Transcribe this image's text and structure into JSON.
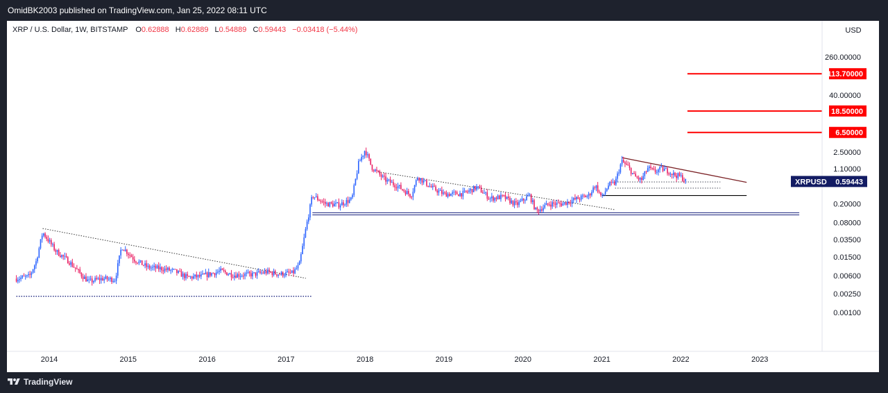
{
  "header": {
    "published": "OmidBK2003 published on TradingView.com, Jan 25, 2022 08:11 UTC"
  },
  "footer": {
    "brand": "TradingView"
  },
  "legend": {
    "symbol": "XRP / U.S. Dollar, 1W, BITSTAMP",
    "open_label": "O",
    "open": "0.62888",
    "high_label": "H",
    "high": "0.62889",
    "low_label": "L",
    "low": "0.54889",
    "close_label": "C",
    "close": "0.59443",
    "change": "−0.03418 (−5.44%)"
  },
  "chart_data": {
    "type": "candlestick",
    "symbol": "XRPUSD",
    "interval": "1W",
    "exchange": "BITSTAMP",
    "scale": "log",
    "currency": "USD",
    "grid": false,
    "y_ticks": [
      "260.00000",
      "40.00000",
      "2.50000",
      "1.10000",
      "0.20000",
      "0.08000",
      "0.03500",
      "0.01500",
      "0.00600",
      "0.00250",
      "0.00100"
    ],
    "x_ticks": [
      "2014",
      "2015",
      "2016",
      "2017",
      "2018",
      "2019",
      "2020",
      "2021",
      "2022",
      "2023"
    ],
    "price_labels": [
      {
        "text": "113.70000",
        "value": 113.7,
        "color": "#ff0000"
      },
      {
        "text": "18.50000",
        "value": 18.5,
        "color": "#ff0000"
      },
      {
        "text": "6.50000",
        "value": 6.5,
        "color": "#ff0000"
      }
    ],
    "last_price": {
      "symbol": "XRPUSD",
      "text": "0.59443",
      "value": 0.59443,
      "color": "#131c63"
    },
    "target_lines": [
      {
        "value": 113.7,
        "from": "2022-02",
        "color": "#ff0000"
      },
      {
        "value": 18.5,
        "from": "2022-02",
        "color": "#ff0000"
      },
      {
        "value": 6.5,
        "from": "2022-02",
        "color": "#ff0000"
      }
    ],
    "horizontal_lines": [
      {
        "value": 0.1225,
        "from": "2017-05",
        "to": "2023-07",
        "color": "#1a237e",
        "style": "double"
      },
      {
        "value": 0.3,
        "from": "2021-01",
        "to": "2022-11",
        "color": "#000000",
        "style": "solid"
      },
      {
        "value": 0.58,
        "from": "2021-03",
        "to": "2022-07",
        "color": "#787b86",
        "style": "dotted"
      },
      {
        "value": 0.43,
        "from": "2021-03",
        "to": "2022-07",
        "color": "#787b86",
        "style": "dotted"
      },
      {
        "value": 0.0022,
        "from": "2013-08",
        "to": "2017-05",
        "color": "#1a237e",
        "style": "dotted"
      }
    ],
    "trendlines": [
      {
        "from": [
          "2013-12",
          0.06
        ],
        "to": [
          "2017-04",
          0.0053
        ],
        "color": "#333333",
        "style": "dotted"
      },
      {
        "from": [
          "2018-03",
          0.95
        ],
        "to": [
          "2021-03",
          0.15
        ],
        "color": "#333333",
        "style": "dotted"
      },
      {
        "from": [
          "2021-04",
          1.9
        ],
        "to": [
          "2022-11",
          0.57
        ],
        "color": "#7b2226",
        "style": "solid"
      }
    ],
    "price_path": [
      [
        "2013-08",
        0.0052
      ],
      [
        "2013-10",
        0.0058
      ],
      [
        "2013-11",
        0.012
      ],
      [
        "2013-12",
        0.05
      ],
      [
        "2014-02",
        0.02
      ],
      [
        "2014-04",
        0.012
      ],
      [
        "2014-06",
        0.006
      ],
      [
        "2014-07",
        0.0045
      ],
      [
        "2014-09",
        0.0052
      ],
      [
        "2014-11",
        0.005
      ],
      [
        "2014-12",
        0.025
      ],
      [
        "2015-02",
        0.013
      ],
      [
        "2015-04",
        0.009
      ],
      [
        "2015-06",
        0.0085
      ],
      [
        "2015-08",
        0.0075
      ],
      [
        "2015-10",
        0.0055
      ],
      [
        "2015-12",
        0.0058
      ],
      [
        "2016-03",
        0.0075
      ],
      [
        "2016-05",
        0.0062
      ],
      [
        "2016-08",
        0.0064
      ],
      [
        "2016-10",
        0.0072
      ],
      [
        "2016-12",
        0.0065
      ],
      [
        "2017-02",
        0.0068
      ],
      [
        "2017-03",
        0.01
      ],
      [
        "2017-04",
        0.06
      ],
      [
        "2017-05",
        0.3
      ],
      [
        "2017-07",
        0.2
      ],
      [
        "2017-09",
        0.19
      ],
      [
        "2017-11",
        0.25
      ],
      [
        "2017-12",
        1.4
      ],
      [
        "2018-01",
        2.8
      ],
      [
        "2018-02",
        1.2
      ],
      [
        "2018-04",
        0.65
      ],
      [
        "2018-06",
        0.47
      ],
      [
        "2018-08",
        0.3
      ],
      [
        "2018-09",
        0.75
      ],
      [
        "2018-11",
        0.45
      ],
      [
        "2019-01",
        0.32
      ],
      [
        "2019-04",
        0.33
      ],
      [
        "2019-06",
        0.45
      ],
      [
        "2019-08",
        0.26
      ],
      [
        "2019-10",
        0.28
      ],
      [
        "2019-12",
        0.19
      ],
      [
        "2020-02",
        0.3
      ],
      [
        "2020-03",
        0.14
      ],
      [
        "2020-05",
        0.2
      ],
      [
        "2020-07",
        0.2
      ],
      [
        "2020-09",
        0.25
      ],
      [
        "2020-11",
        0.3
      ],
      [
        "2020-12",
        0.5
      ],
      [
        "2021-01",
        0.27
      ],
      [
        "2021-02",
        0.5
      ],
      [
        "2021-03",
        0.55
      ],
      [
        "2021-04",
        1.6
      ],
      [
        "2021-05",
        1.2
      ],
      [
        "2021-06",
        0.75
      ],
      [
        "2021-07",
        0.63
      ],
      [
        "2021-08",
        1.15
      ],
      [
        "2021-09",
        0.95
      ],
      [
        "2021-10",
        1.1
      ],
      [
        "2021-11",
        1.0
      ],
      [
        "2021-12",
        0.82
      ],
      [
        "2022-01",
        0.75
      ],
      [
        "2022-01-25",
        0.59443
      ]
    ]
  }
}
